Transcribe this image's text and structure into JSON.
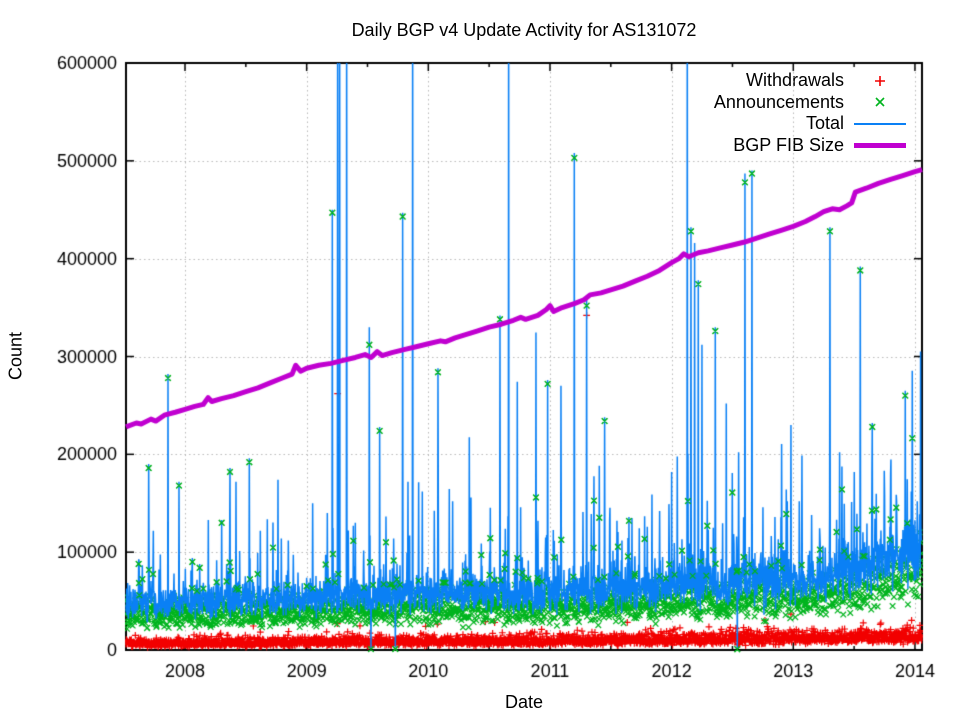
{
  "chart_data": {
    "type": "line",
    "title": "Daily BGP v4 Update Activity for AS131072",
    "xlabel": "Date",
    "ylabel": "Count",
    "xlim": [
      2007.515,
      2014.058
    ],
    "ylim": [
      0,
      600000
    ],
    "x_ticks": [
      2008,
      2009,
      2010,
      2011,
      2012,
      2013,
      2014
    ],
    "x_minor_ticks": [
      2008.5,
      2009.5,
      2010.5,
      2011.5,
      2012.5,
      2013.5
    ],
    "y_ticks": [
      0,
      100000,
      200000,
      300000,
      400000,
      500000,
      600000
    ],
    "grid": true,
    "grid_color": "#b8b8b8",
    "text_color": "#000000",
    "background": "#ffffff",
    "legend_position": "top-right",
    "seed": 1337,
    "days_per_year": 365,
    "series": [
      {
        "name": "Withdrawals",
        "style": "points",
        "marker": "plus",
        "color": "#f20000",
        "noise_sigma": 0.3,
        "outlier_prob": 0.012,
        "base_keypoints": [
          [
            2007.52,
            6500
          ],
          [
            2009.0,
            8000
          ],
          [
            2011.0,
            9500
          ],
          [
            2012.5,
            11000
          ],
          [
            2014.06,
            13500
          ]
        ]
      },
      {
        "name": "Announcements",
        "style": "points",
        "marker": "cross",
        "color": "#00b41e",
        "noise_sigma": 0.22,
        "outlier_prob": 0.03,
        "base_keypoints": [
          [
            2007.52,
            37000
          ],
          [
            2008.5,
            40000
          ],
          [
            2009.5,
            42000
          ],
          [
            2010.5,
            44000
          ],
          [
            2011.5,
            46000
          ],
          [
            2012.3,
            50000
          ],
          [
            2012.8,
            54000
          ],
          [
            2013.3,
            58000
          ],
          [
            2013.6,
            64000
          ],
          [
            2013.8,
            72000
          ],
          [
            2014.06,
            88000
          ]
        ]
      },
      {
        "name": "Total",
        "style": "line",
        "color": "#0a80f5",
        "extra_sigma": 0.12,
        "spike_prob": 0.03
      },
      {
        "name": "BGP FIB Size",
        "style": "line",
        "color": "#c000d0",
        "linewidth": 5,
        "points": [
          [
            2007.515,
            228000
          ],
          [
            2007.6,
            232000
          ],
          [
            2007.64,
            231000
          ],
          [
            2007.72,
            236000
          ],
          [
            2007.76,
            234000
          ],
          [
            2007.83,
            240000
          ],
          [
            2007.92,
            243000
          ],
          [
            2008.0,
            246000
          ],
          [
            2008.08,
            249000
          ],
          [
            2008.15,
            251000
          ],
          [
            2008.19,
            258000
          ],
          [
            2008.22,
            254000
          ],
          [
            2008.3,
            257000
          ],
          [
            2008.4,
            260000
          ],
          [
            2008.5,
            264000
          ],
          [
            2008.6,
            268000
          ],
          [
            2008.7,
            273000
          ],
          [
            2008.8,
            278000
          ],
          [
            2008.88,
            282000
          ],
          [
            2008.91,
            291000
          ],
          [
            2008.95,
            285000
          ],
          [
            2009.0,
            288000
          ],
          [
            2009.1,
            291000
          ],
          [
            2009.2,
            293000
          ],
          [
            2009.3,
            296000
          ],
          [
            2009.4,
            299000
          ],
          [
            2009.48,
            302000
          ],
          [
            2009.53,
            299000
          ],
          [
            2009.58,
            305000
          ],
          [
            2009.62,
            301000
          ],
          [
            2009.7,
            304000
          ],
          [
            2009.8,
            307000
          ],
          [
            2009.9,
            310000
          ],
          [
            2010.0,
            313000
          ],
          [
            2010.1,
            316000
          ],
          [
            2010.14,
            315000
          ],
          [
            2010.22,
            319000
          ],
          [
            2010.3,
            322000
          ],
          [
            2010.4,
            326000
          ],
          [
            2010.5,
            330000
          ],
          [
            2010.6,
            333000
          ],
          [
            2010.7,
            337000
          ],
          [
            2010.76,
            340000
          ],
          [
            2010.8,
            338000
          ],
          [
            2010.9,
            342000
          ],
          [
            2010.97,
            348000
          ],
          [
            2011.0,
            352000
          ],
          [
            2011.03,
            346000
          ],
          [
            2011.1,
            350000
          ],
          [
            2011.2,
            354000
          ],
          [
            2011.28,
            358000
          ],
          [
            2011.33,
            363000
          ],
          [
            2011.42,
            365000
          ],
          [
            2011.5,
            368000
          ],
          [
            2011.6,
            372000
          ],
          [
            2011.7,
            377000
          ],
          [
            2011.8,
            382000
          ],
          [
            2011.9,
            388000
          ],
          [
            2012.0,
            396000
          ],
          [
            2012.06,
            400000
          ],
          [
            2012.1,
            405000
          ],
          [
            2012.14,
            402000
          ],
          [
            2012.22,
            406000
          ],
          [
            2012.3,
            408000
          ],
          [
            2012.4,
            411000
          ],
          [
            2012.5,
            414000
          ],
          [
            2012.6,
            417000
          ],
          [
            2012.7,
            421000
          ],
          [
            2012.8,
            425000
          ],
          [
            2012.9,
            429000
          ],
          [
            2013.0,
            433000
          ],
          [
            2013.1,
            438000
          ],
          [
            2013.18,
            443000
          ],
          [
            2013.25,
            448000
          ],
          [
            2013.32,
            451000
          ],
          [
            2013.38,
            450000
          ],
          [
            2013.44,
            454000
          ],
          [
            2013.48,
            457000
          ],
          [
            2013.51,
            468000
          ],
          [
            2013.6,
            472000
          ],
          [
            2013.7,
            477000
          ],
          [
            2013.8,
            481000
          ],
          [
            2013.9,
            485000
          ],
          [
            2014.0,
            489000
          ],
          [
            2014.058,
            491000
          ]
        ]
      }
    ],
    "events": {
      "spikes": [
        {
          "x": 2007.62,
          "total": 92000,
          "announcement": 88000
        },
        {
          "x": 2007.7,
          "total": 190000,
          "announcement": 186000
        },
        {
          "x": 2007.74,
          "total": 122000
        },
        {
          "x": 2007.86,
          "total": 282000,
          "announcement": 278000
        },
        {
          "x": 2007.95,
          "total": 172000,
          "announcement": 168000
        },
        {
          "x": 2008.06,
          "total": 94000,
          "announcement": 90000
        },
        {
          "x": 2008.12,
          "total": 88000,
          "announcement": 84000
        },
        {
          "x": 2008.3,
          "total": 133000,
          "announcement": 130000
        },
        {
          "x": 2008.37,
          "total": 186000,
          "announcement": 182000
        },
        {
          "x": 2008.42,
          "total": 172000
        },
        {
          "x": 2008.53,
          "total": 196000,
          "announcement": 192000
        },
        {
          "x": 2008.62,
          "total": 122000
        },
        {
          "x": 2008.85,
          "total": 112000
        },
        {
          "x": 2009.05,
          "total": 150000
        },
        {
          "x": 2009.17,
          "total": 140000
        },
        {
          "x": 2009.21,
          "total": 450000,
          "announcement": 447000
        },
        {
          "x": 2009.255,
          "total": 680000,
          "withdrawal": 262000
        },
        {
          "x": 2009.27,
          "total": 680000
        },
        {
          "x": 2009.33,
          "total": 680000
        },
        {
          "x": 2009.4,
          "total": 130000
        },
        {
          "x": 2009.515,
          "total": 330000,
          "announcement": 312000
        },
        {
          "x": 2009.6,
          "total": 228000,
          "announcement": 224000
        },
        {
          "x": 2009.79,
          "total": 447000,
          "announcement": 443000
        },
        {
          "x": 2009.87,
          "total": 680000
        },
        {
          "x": 2009.95,
          "total": 162000
        },
        {
          "x": 2010.08,
          "total": 288000,
          "announcement": 284000
        },
        {
          "x": 2010.2,
          "total": 152000
        },
        {
          "x": 2010.35,
          "total": 156000
        },
        {
          "x": 2010.59,
          "total": 342000,
          "announcement": 338000
        },
        {
          "x": 2010.66,
          "total": 680000
        },
        {
          "x": 2010.76,
          "total": 146000
        },
        {
          "x": 2010.9,
          "total": 132000
        },
        {
          "x": 2010.98,
          "total": 276000,
          "announcement": 272000
        },
        {
          "x": 2011.09,
          "total": 270000
        },
        {
          "x": 2011.2,
          "total": 508000,
          "announcement": 503000
        },
        {
          "x": 2011.3,
          "total": 358000,
          "announcement": 352000,
          "withdrawal": 342000
        },
        {
          "x": 2011.45,
          "total": 238000,
          "announcement": 234000
        },
        {
          "x": 2011.55,
          "total": 132000
        },
        {
          "x": 2011.65,
          "total": 136000,
          "announcement": 132000
        },
        {
          "x": 2011.8,
          "total": 126000
        },
        {
          "x": 2011.9,
          "total": 142000
        },
        {
          "x": 2012.0,
          "total": 182000
        },
        {
          "x": 2012.13,
          "total": 680000
        },
        {
          "x": 2012.16,
          "total": 432000,
          "announcement": 428000
        },
        {
          "x": 2012.19,
          "total": 416000
        },
        {
          "x": 2012.22,
          "total": 378000,
          "announcement": 374000
        },
        {
          "x": 2012.25,
          "total": 312000
        },
        {
          "x": 2012.36,
          "total": 330000,
          "announcement": 326000
        },
        {
          "x": 2012.45,
          "total": 252000
        },
        {
          "x": 2012.55,
          "total": 202000
        },
        {
          "x": 2012.603,
          "total": 487000,
          "announcement": 478000
        },
        {
          "x": 2012.66,
          "total": 490000,
          "announcement": 487000
        },
        {
          "x": 2012.75,
          "total": 146000
        },
        {
          "x": 2012.85,
          "total": 136000
        },
        {
          "x": 2012.95,
          "total": 152000
        },
        {
          "x": 2013.05,
          "total": 152000
        },
        {
          "x": 2013.15,
          "total": 138000
        },
        {
          "x": 2013.3,
          "total": 432000,
          "announcement": 428000
        },
        {
          "x": 2013.38,
          "total": 202000
        },
        {
          "x": 2013.5,
          "total": 182000
        },
        {
          "x": 2013.55,
          "total": 392000,
          "announcement": 388000
        },
        {
          "x": 2013.65,
          "total": 232000,
          "announcement": 228000
        },
        {
          "x": 2013.75,
          "total": 158000
        },
        {
          "x": 2013.85,
          "total": 152000
        },
        {
          "x": 2013.92,
          "total": 265000,
          "announcement": 260000
        },
        {
          "x": 2013.97,
          "total": 162000
        },
        {
          "x": 2014.02,
          "total": 152000
        }
      ],
      "dips": [
        {
          "x": 2009.53,
          "total": 2000,
          "announcement": 900
        },
        {
          "x": 2009.73,
          "total": 2500,
          "announcement": 1100
        },
        {
          "x": 2012.54,
          "total": 1800,
          "announcement": 800
        }
      ]
    }
  }
}
